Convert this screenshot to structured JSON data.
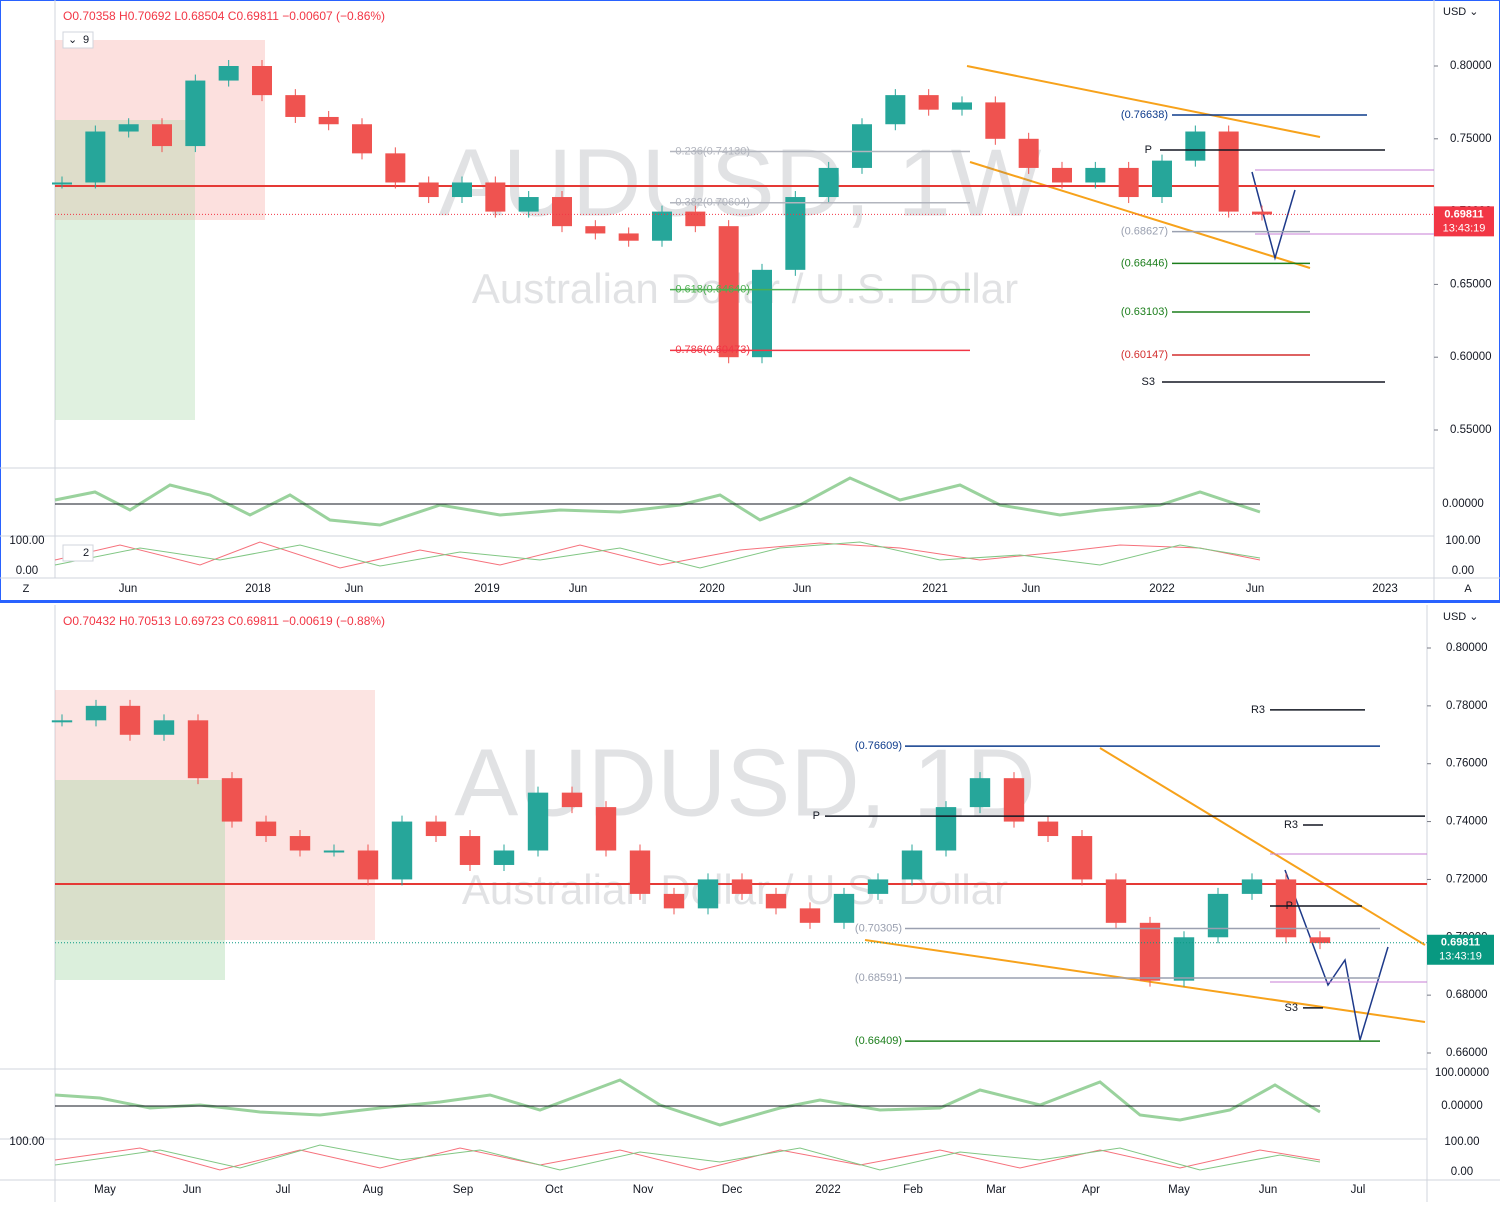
{
  "top_panel": {
    "ohlc": "O0.70358 H0.70692 L0.68504 C0.69811 −0.00607 (−0.86%)",
    "interval_input": "9",
    "oscillator_input": "2",
    "watermark_symbol": "AUDUSD, 1W",
    "watermark_name": "Australian Dollar / U.S. Dollar",
    "currency": "USD ⌄",
    "corner_left": "Z",
    "corner_right": "A",
    "y_ticks": [
      {
        "value": 0.8,
        "label": "0.80000"
      },
      {
        "value": 0.75,
        "label": "0.75000"
      },
      {
        "value": 0.7,
        "label": "0.70000"
      },
      {
        "value": 0.65,
        "label": "0.65000"
      },
      {
        "value": 0.6,
        "label": "0.60000"
      },
      {
        "value": 0.55,
        "label": "0.55000"
      }
    ],
    "osc1_ticks": [
      "0.00000"
    ],
    "osc2_ticks": [
      "100.00",
      "0.00"
    ],
    "x_labels": [
      "Jun",
      "2018",
      "Jun",
      "2019",
      "Jun",
      "2020",
      "Jun",
      "2021",
      "Jun",
      "2022",
      "Jun",
      "2023"
    ],
    "levels": [
      {
        "value": 0.7413,
        "label": "0.236(0.74130)",
        "color": "#b2b5be"
      },
      {
        "value": 0.70604,
        "label": "0.382(0.70604)",
        "color": "#b2b5be"
      },
      {
        "value": 0.6464,
        "label": "0.618(0.64640)",
        "color": "#4caf50"
      },
      {
        "value": 0.60473,
        "label": "0.786(0.60473)",
        "color": "#f23645"
      },
      {
        "value": 0.76638,
        "label": "(0.76638)",
        "color": "#0d3b8c"
      },
      {
        "value": 0.7423,
        "label": "P",
        "color": "#131722"
      },
      {
        "value": 0.68627,
        "label": "(0.68627)",
        "color": "#9aa0b0"
      },
      {
        "value": 0.66446,
        "label": "(0.66446)",
        "color": "#1b7e1b"
      },
      {
        "value": 0.63103,
        "label": "(0.63103)",
        "color": "#1b7e1b"
      },
      {
        "value": 0.60147,
        "label": "(0.60147)",
        "color": "#d32f2f"
      },
      {
        "value": 0.583,
        "label": "S3",
        "color": "#131722"
      }
    ],
    "poc_level": 0.7176,
    "price_tag": {
      "value": 0.69811,
      "label": "0.69811",
      "timer": "13:43:19",
      "color": "#f23645"
    },
    "closes": [
      0.72,
      0.755,
      0.76,
      0.745,
      0.79,
      0.8,
      0.78,
      0.765,
      0.76,
      0.74,
      0.72,
      0.71,
      0.72,
      0.7,
      0.71,
      0.69,
      0.685,
      0.68,
      0.7,
      0.69,
      0.6,
      0.66,
      0.71,
      0.73,
      0.76,
      0.78,
      0.77,
      0.775,
      0.75,
      0.73,
      0.72,
      0.73,
      0.71,
      0.735,
      0.755,
      0.7,
      0.698
    ]
  },
  "bottom_panel": {
    "ohlc": "O0.70432 H0.70513 L0.69723 C0.69811 −0.00619 (−0.88%)",
    "watermark_symbol": "AUDUSD, 1D",
    "watermark_name": "Australian Dollar / U.S. Dollar",
    "currency": "USD ⌄",
    "y_ticks": [
      {
        "value": 0.8,
        "label": "0.80000"
      },
      {
        "value": 0.78,
        "label": "0.78000"
      },
      {
        "value": 0.76,
        "label": "0.76000"
      },
      {
        "value": 0.74,
        "label": "0.74000"
      },
      {
        "value": 0.72,
        "label": "0.72000"
      },
      {
        "value": 0.7,
        "label": "0.70000"
      },
      {
        "value": 0.68,
        "label": "0.68000"
      },
      {
        "value": 0.66,
        "label": "0.66000"
      }
    ],
    "osc1_ticks": [
      "100.00000",
      "0.00000"
    ],
    "osc2_ticks": [
      "100.00",
      "0.00"
    ],
    "x_labels": [
      "May",
      "Jun",
      "Jul",
      "Aug",
      "Sep",
      "Oct",
      "Nov",
      "Dec",
      "2022",
      "Feb",
      "Mar",
      "Apr",
      "May",
      "Jun",
      "Jul"
    ],
    "levels": [
      {
        "value": 0.76609,
        "label": "(0.76609)",
        "color": "#0d3b8c"
      },
      {
        "value": 0.7786,
        "label": "R3",
        "color": "#131722"
      },
      {
        "value": 0.7419,
        "label": "P",
        "color": "#131722"
      },
      {
        "value": 0.7388,
        "label": "R3",
        "color": "#131722"
      },
      {
        "value": 0.7108,
        "label": "P",
        "color": "#131722"
      },
      {
        "value": 0.70305,
        "label": "(0.70305)",
        "color": "#9aa0b0"
      },
      {
        "value": 0.68591,
        "label": "(0.68591)",
        "color": "#9aa0b0"
      },
      {
        "value": 0.6756,
        "label": "S3",
        "color": "#131722"
      },
      {
        "value": 0.66409,
        "label": "(0.66409)",
        "color": "#1b7e1b"
      }
    ],
    "poc_level": 0.7184,
    "price_tag": {
      "value": 0.69811,
      "label": "0.69811",
      "timer": "13:43:19",
      "color": "#089981"
    },
    "closes": [
      0.775,
      0.78,
      0.77,
      0.775,
      0.755,
      0.74,
      0.735,
      0.73,
      0.73,
      0.72,
      0.74,
      0.735,
      0.725,
      0.73,
      0.75,
      0.745,
      0.73,
      0.715,
      0.71,
      0.72,
      0.715,
      0.71,
      0.705,
      0.715,
      0.72,
      0.73,
      0.745,
      0.755,
      0.74,
      0.735,
      0.72,
      0.705,
      0.685,
      0.7,
      0.715,
      0.72,
      0.7,
      0.698
    ]
  }
}
